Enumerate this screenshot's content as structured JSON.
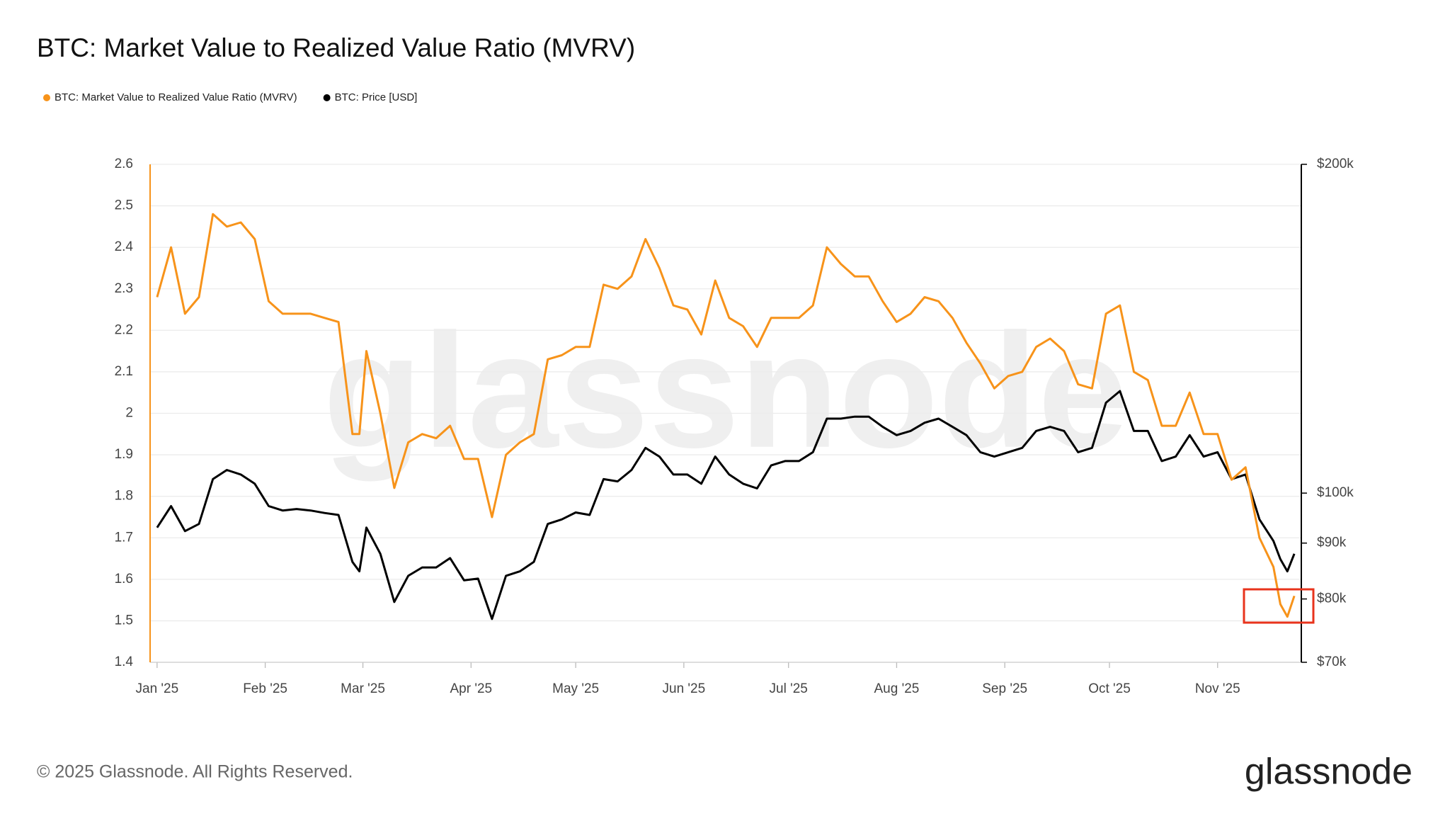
{
  "chart_data": {
    "type": "line",
    "title": "BTC: Market Value to Realized Value Ratio (MVRV)",
    "x": [
      0,
      4,
      8,
      12,
      16,
      20,
      24,
      28,
      32,
      36,
      40,
      44,
      48,
      52,
      56,
      58,
      60,
      64,
      68,
      72,
      76,
      80,
      84,
      88,
      92,
      96,
      100,
      104,
      108,
      112,
      116,
      120,
      124,
      128,
      132,
      136,
      140,
      144,
      148,
      152,
      156,
      160,
      164,
      168,
      172,
      176,
      180,
      184,
      188,
      192,
      196,
      200,
      204,
      208,
      212,
      216,
      220,
      224,
      228,
      232,
      236,
      240,
      244,
      248,
      252,
      256,
      260,
      264,
      268,
      272,
      276,
      280,
      284,
      288,
      292,
      296,
      300,
      304,
      308,
      312,
      316,
      320,
      322,
      324,
      326
    ],
    "xlim": [
      -2,
      328
    ],
    "xticks": [
      {
        "value": 0,
        "label": "Jan '25"
      },
      {
        "value": 31,
        "label": "Feb '25"
      },
      {
        "value": 59,
        "label": "Mar '25"
      },
      {
        "value": 90,
        "label": "Apr '25"
      },
      {
        "value": 120,
        "label": "May '25"
      },
      {
        "value": 151,
        "label": "Jun '25"
      },
      {
        "value": 181,
        "label": "Jul '25"
      },
      {
        "value": 212,
        "label": "Aug '25"
      },
      {
        "value": 243,
        "label": "Sep '25"
      },
      {
        "value": 273,
        "label": "Oct '25"
      },
      {
        "value": 304,
        "label": "Nov '25"
      }
    ],
    "ylim": [
      1.4,
      2.6
    ],
    "yticks": [
      1.4,
      1.5,
      1.6,
      1.7,
      1.8,
      1.9,
      2,
      2.1,
      2.2,
      2.3,
      2.4,
      2.5,
      2.6
    ],
    "y2lim": [
      70000,
      200000
    ],
    "y2ticks": [
      {
        "value": 70000,
        "label": "$70k"
      },
      {
        "value": 80000,
        "label": "$80k"
      },
      {
        "value": 90000,
        "label": "$90k"
      },
      {
        "value": 100000,
        "label": "$100k"
      },
      {
        "value": 200000,
        "label": "$200k"
      }
    ],
    "y2_log": true,
    "grid": true,
    "series": [
      {
        "name": "BTC: Market Value to Realized Value Ratio (MVRV)",
        "color": "#f7931a",
        "axis": "y",
        "values": [
          2.28,
          2.4,
          2.24,
          2.28,
          2.48,
          2.45,
          2.46,
          2.42,
          2.27,
          2.24,
          2.24,
          2.24,
          2.23,
          2.22,
          1.95,
          1.95,
          2.15,
          2.0,
          1.82,
          1.93,
          1.95,
          1.94,
          1.97,
          1.89,
          1.89,
          1.75,
          1.9,
          1.93,
          1.95,
          2.13,
          2.14,
          2.16,
          2.16,
          2.31,
          2.3,
          2.33,
          2.42,
          2.35,
          2.26,
          2.25,
          2.19,
          2.32,
          2.23,
          2.21,
          2.16,
          2.23,
          2.23,
          2.23,
          2.26,
          2.4,
          2.36,
          2.33,
          2.33,
          2.27,
          2.22,
          2.24,
          2.28,
          2.27,
          2.23,
          2.17,
          2.12,
          2.06,
          2.09,
          2.1,
          2.16,
          2.18,
          2.15,
          2.07,
          2.06,
          2.24,
          2.26,
          2.1,
          2.08,
          1.97,
          1.97,
          2.05,
          1.95,
          1.95,
          1.84,
          1.87,
          1.7,
          1.63,
          1.54,
          1.51,
          1.56
        ]
      },
      {
        "name": "BTC: Price [USD]",
        "color": "#000000",
        "axis": "y2",
        "values": [
          93000,
          97300,
          92300,
          93700,
          103000,
          105000,
          104000,
          102000,
          97300,
          96400,
          96700,
          96400,
          95900,
          95500,
          86500,
          84800,
          93000,
          88000,
          79500,
          84000,
          85500,
          85500,
          87200,
          83200,
          83500,
          76700,
          84000,
          84800,
          86500,
          93700,
          94600,
          96000,
          95500,
          103000,
          102500,
          105000,
          110000,
          108000,
          104000,
          104000,
          102000,
          108000,
          104000,
          102000,
          101000,
          106000,
          107000,
          107000,
          109000,
          117000,
          117000,
          117500,
          117500,
          115000,
          113000,
          114000,
          116000,
          117000,
          115000,
          113000,
          109000,
          108000,
          109000,
          110000,
          114000,
          115000,
          114000,
          109000,
          110000,
          121000,
          124000,
          114000,
          114000,
          107000,
          108000,
          113000,
          108000,
          109000,
          103000,
          104000,
          94600,
          90400,
          87000,
          84800,
          88000
        ]
      }
    ]
  },
  "footer": "© 2025 Glassnode. All Rights Reserved.",
  "logo": "glassnode",
  "watermark": "glassnode"
}
